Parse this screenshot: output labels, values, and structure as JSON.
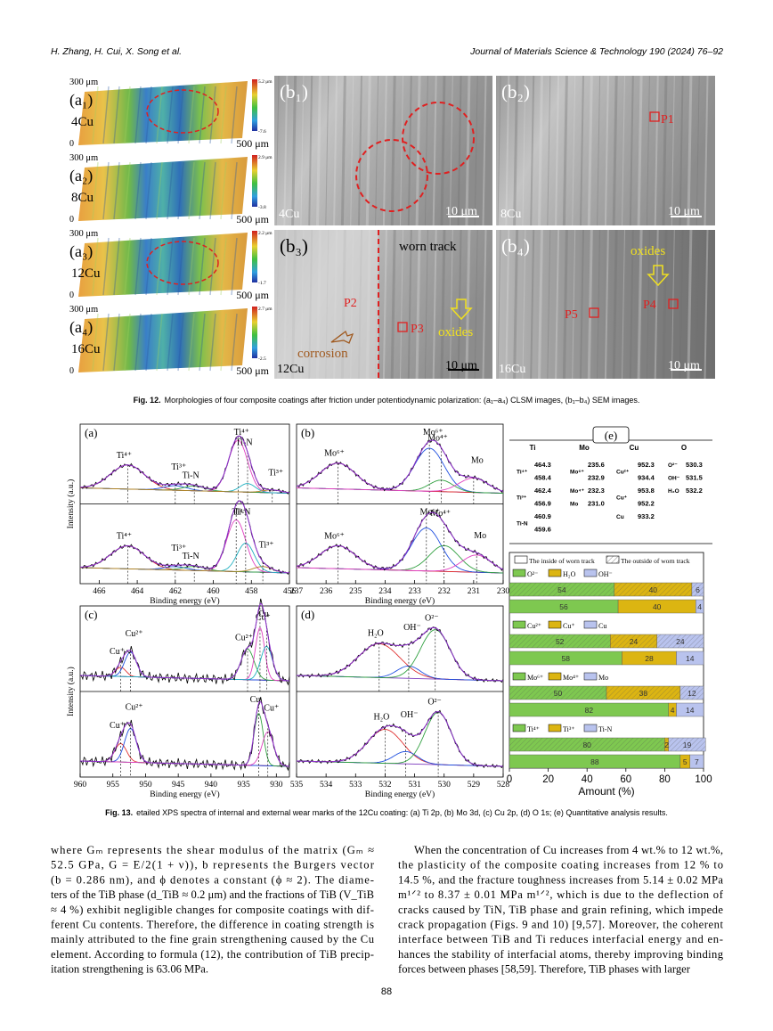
{
  "header": {
    "authors": "H. Zhang, H. Cui, X. Song et al.",
    "journal": "Journal of Materials Science & Technology 190 (2024) 76–92"
  },
  "figure12": {
    "clsm": [
      {
        "top": "300 μm",
        "label": "(a₁)",
        "sample": "4Cu",
        "origin": "0",
        "right": "500 μm",
        "scale_max": "5.2 μm",
        "scale_min": "-7.6"
      },
      {
        "top": "300 μm",
        "label": "(a₂)",
        "sample": "8Cu",
        "origin": "0",
        "right": "500 μm",
        "scale_max": "2.9 μm",
        "scale_min": "-3.8"
      },
      {
        "top": "300 μm",
        "label": "(a₃)",
        "sample": "12Cu",
        "origin": "0",
        "right": "500 μm",
        "scale_max": "2.2 μm",
        "scale_min": "-1.7"
      },
      {
        "top": "300 μm",
        "label": "(a₄)",
        "sample": "16Cu",
        "origin": "0",
        "right": "500 μm",
        "scale_max": "2.7 μm",
        "scale_min": "-2.5"
      }
    ],
    "sem": [
      {
        "texts": [
          "(b₁)",
          "4Cu",
          "10 μm"
        ]
      },
      {
        "texts": [
          "(b₂)",
          "P1",
          "8Cu",
          "10 μm"
        ]
      },
      {
        "texts": [
          "(b₃)",
          "worn track",
          "P2",
          "P3",
          "oxides",
          "corrosion",
          "12Cu",
          "10 μm"
        ]
      },
      {
        "texts": [
          "(b₄)",
          "oxides",
          "P5",
          "P4",
          "16Cu",
          "10 μm"
        ]
      }
    ],
    "caption_label": "Fig. 12.",
    "caption": "Morphologies of four composite coatings after friction under potentiodynamic polarization: (a₁–a₄) CLSM images, (b₁–b₄) SEM images."
  },
  "xps": {
    "y_label": "Intensity (a.u.)",
    "x_label": "Binding energy (eV)",
    "panels": [
      {
        "label": "(a)",
        "xlim": [
          467,
          456
        ],
        "xticks": [
          466,
          464,
          462,
          460,
          458,
          456
        ],
        "subplots": [
          {
            "peaks": [
              {
                "label": "Ti⁴⁺",
                "position": 464.5,
                "height": 0.42,
                "width": 0.9
              },
              {
                "label": "Ti³⁺",
                "position": 462,
                "height": 0.08,
                "width": 0.6
              },
              {
                "label": "Ti-N",
                "position": 461,
                "height": 0.08,
                "width": 0.6
              },
              {
                "label": "Ti⁴⁺",
                "position": 458.7,
                "height": 0.9,
                "width": 0.5
              },
              {
                "label": "Ti-N",
                "position": 458.2,
                "height": 0.15,
                "width": 0.4
              },
              {
                "label": "Ti³⁺",
                "position": 456.9,
                "height": 0.05,
                "width": 0.5
              }
            ]
          },
          {
            "peaks": [
              {
                "label": "Ti⁴⁺",
                "position": 464.5,
                "height": 0.4,
                "width": 0.9
              },
              {
                "label": "Ti³⁺",
                "position": 462,
                "height": 0.06,
                "width": 0.6
              },
              {
                "label": "Ti-N",
                "position": 461,
                "height": 0.07,
                "width": 0.6
              },
              {
                "label": "Ti⁴⁺",
                "position": 458.8,
                "height": 0.9,
                "width": 0.5
              },
              {
                "label": "Ti-N",
                "position": 458.3,
                "height": 0.5,
                "width": 0.45
              },
              {
                "label": "Ti³⁺",
                "position": 457.4,
                "height": 0.1,
                "width": 0.5
              }
            ]
          }
        ]
      },
      {
        "label": "(b)",
        "xlim": [
          237,
          230
        ],
        "xticks": [
          237,
          236,
          235,
          234,
          233,
          232,
          231,
          230
        ],
        "subplots": [
          {
            "peaks": [
              {
                "label": "Mo⁶⁺",
                "position": 235.6,
                "height": 0.45,
                "width": 0.6
              },
              {
                "label": "Mo⁶⁺",
                "position": 232.5,
                "height": 0.75,
                "width": 0.5
              },
              {
                "label": "Mo⁴⁺",
                "position": 232.1,
                "height": 0.2,
                "width": 0.4
              },
              {
                "label": "Mo",
                "position": 231,
                "height": 0.25,
                "width": 0.5
              }
            ]
          },
          {
            "peaks": [
              {
                "label": "Mo⁶⁺",
                "position": 235.6,
                "height": 0.4,
                "width": 0.6
              },
              {
                "label": "Mo⁶⁺",
                "position": 232.6,
                "height": 0.75,
                "width": 0.5
              },
              {
                "label": "Mo⁴⁺",
                "position": 232,
                "height": 0.45,
                "width": 0.5
              },
              {
                "label": "Mo",
                "position": 230.9,
                "height": 0.3,
                "width": 0.5
              }
            ]
          }
        ]
      },
      {
        "label": "(c)",
        "xlim": [
          960,
          928
        ],
        "xticks": [
          960,
          955,
          950,
          945,
          940,
          935,
          930
        ],
        "subplots": [
          {
            "peaks": [
              {
                "label": "Cu⁺",
                "position": 953.8,
                "height": 0.15,
                "width": 0.8
              },
              {
                "label": "Cu²⁺",
                "position": 952.3,
                "height": 0.4,
                "width": 0.9
              },
              {
                "label": "Cu²⁺",
                "position": 934.4,
                "height": 0.5,
                "width": 1
              },
              {
                "label": "Cu",
                "position": 932.5,
                "height": 0.85,
                "width": 0.7
              },
              {
                "label": "Cu⁺",
                "position": 931.5,
                "height": 0.55,
                "width": 0.9
              }
            ]
          },
          {
            "peaks": [
              {
                "label": "Cu⁺",
                "position": 953.8,
                "height": 0.3,
                "width": 0.9
              },
              {
                "label": "Cu²⁺",
                "position": 952.3,
                "height": 0.55,
                "width": 0.9
              },
              {
                "label": "Cu",
                "position": 932.7,
                "height": 0.85,
                "width": 0.7
              },
              {
                "label": "Cu⁺",
                "position": 931.3,
                "height": 0.55,
                "width": 0.9
              }
            ]
          }
        ]
      },
      {
        "label": "(d)",
        "xlim": [
          535,
          528
        ],
        "xticks": [
          535,
          534,
          533,
          532,
          531,
          530,
          529,
          528
        ],
        "subplots": [
          {
            "peaks": [
              {
                "label": "H₂O",
                "position": 532.2,
                "height": 0.55,
                "width": 0.7
              },
              {
                "label": "OH⁻",
                "position": 531.2,
                "height": 0.2,
                "width": 0.4
              },
              {
                "label": "O²⁻",
                "position": 530.3,
                "height": 0.8,
                "width": 0.5
              }
            ]
          },
          {
            "peaks": [
              {
                "label": "H₂O",
                "position": 532,
                "height": 0.55,
                "width": 0.6
              },
              {
                "label": "OH⁻",
                "position": 531.3,
                "height": 0.2,
                "width": 0.4
              },
              {
                "label": "O²⁻",
                "position": 530.2,
                "height": 0.85,
                "width": 0.45
              }
            ]
          }
        ]
      }
    ]
  },
  "table": {
    "label": "(e)",
    "groups": [
      {
        "element": "Ti",
        "species": [
          {
            "name": "Ti⁴⁺",
            "values": [
              "464.3",
              "458.4"
            ]
          },
          {
            "name": "Ti³⁺",
            "values": [
              "462.4",
              "456.9"
            ]
          },
          {
            "name": "Ti-N",
            "values": [
              "460.9",
              "459.6"
            ]
          }
        ]
      },
      {
        "element": "Mo",
        "species": [
          {
            "name": "Mo⁶⁺",
            "values": [
              "235.6",
              "232.9"
            ]
          },
          {
            "name": "Mo⁴⁺",
            "values": [
              "232.3"
            ]
          },
          {
            "name": "Mo",
            "values": [
              "231.0"
            ]
          }
        ]
      },
      {
        "element": "Cu",
        "species": [
          {
            "name": "Cu²⁺",
            "values": [
              "952.3",
              "934.4"
            ]
          },
          {
            "name": "Cu⁺",
            "values": [
              "953.8",
              "952.2"
            ]
          },
          {
            "name": "Cu",
            "values": [
              "933.2"
            ]
          }
        ]
      },
      {
        "element": "O",
        "species": [
          {
            "name": "O²⁻",
            "values": [
              "530.3"
            ]
          },
          {
            "name": "OH⁻",
            "values": [
              "531.5"
            ]
          },
          {
            "name": "H₂O",
            "values": [
              "532.2"
            ]
          }
        ]
      }
    ]
  },
  "chart_data": {
    "type": "bar",
    "orientation": "horizontal",
    "stacked": true,
    "tracks": [
      "The inside of worn track",
      "The outside of worn track"
    ],
    "colors": [
      "#7ec850",
      "#dcb512",
      "#b9c3ee"
    ],
    "xlim": [
      0,
      100
    ],
    "xticks": [
      0,
      20,
      40,
      60,
      80,
      100
    ],
    "x_label": "Amount (%)",
    "groups": [
      {
        "legend": [
          "O²⁻",
          "H₂O",
          "OH⁻"
        ],
        "rows": [
          {
            "track": 1,
            "values": [
              54,
              40,
              6
            ]
          },
          {
            "track": 0,
            "values": [
              56,
              40,
              4
            ]
          }
        ]
      },
      {
        "legend": [
          "Cu²⁺",
          "Cu⁺",
          "Cu"
        ],
        "rows": [
          {
            "track": 1,
            "values": [
              52,
              24,
              24
            ]
          },
          {
            "track": 0,
            "values": [
              58,
              28,
              14
            ]
          }
        ]
      },
      {
        "legend": [
          "Mo⁶⁺",
          "Mo⁴⁺",
          "Mo"
        ],
        "rows": [
          {
            "track": 1,
            "values": [
              50,
              38,
              12
            ]
          },
          {
            "track": 0,
            "values": [
              82,
              4,
              14
            ]
          }
        ]
      },
      {
        "legend": [
          "Ti⁴⁺",
          "Ti³⁺",
          "Ti-N"
        ],
        "rows": [
          {
            "track": 1,
            "values": [
              80,
              2,
              19
            ]
          },
          {
            "track": 0,
            "values": [
              88,
              5,
              7
            ]
          }
        ]
      }
    ]
  },
  "figure13": {
    "caption_label": "Fig. 13.",
    "caption": "etailed XPS spectra of internal and external wear marks of the 12Cu coating: (a) Ti 2p, (b) Mo 3d, (c) Cu 2p, (d) O 1s; (e) Quantitative analysis results."
  },
  "body": {
    "left": [
      "where Gₘ represents the shear modulus of the matrix (Gₘ ≈",
      "52.5 GPa, G = E/2(1 + ν)), b represents the Burgers vector",
      "(b = 0.286 nm), and ϕ denotes a constant (ϕ ≈ 2). The diame-",
      "ters of the TiB phase (d_TiB ≈ 0.2 μm) and the fractions of TiB (V_TiB",
      "≈ 4 %) exhibit negligible changes for composite coatings with dif-",
      "ferent Cu contents. Therefore, the difference in coating strength is",
      "mainly attributed to the fine grain strengthening caused by the Cu",
      "element. According to formula (12), the contribution of TiB precip-",
      "itation strengthening is 63.06 MPa."
    ],
    "right": [
      "When the concentration of Cu increases from 4 wt.% to 12 wt.%,",
      "the plasticity of the composite coating increases from 12 % to",
      "14.5 %, and the fracture toughness increases from 5.14 ± 0.02 MPa",
      "m¹ᐟ² to 8.37 ± 0.01 MPa m¹ᐟ², which is due to the deflection of",
      "cracks caused by TiN, TiB phase and grain refining, which impede",
      "crack propagation (Figs. 9 and 10) [9,57]. Moreover, the coherent",
      "interface between TiB and Ti reduces interfacial energy and en-",
      "hances the stability of interfacial atoms, thereby improving binding",
      "forces between phases [58,59]. Therefore, TiB phases with larger"
    ]
  },
  "page_number": "88"
}
